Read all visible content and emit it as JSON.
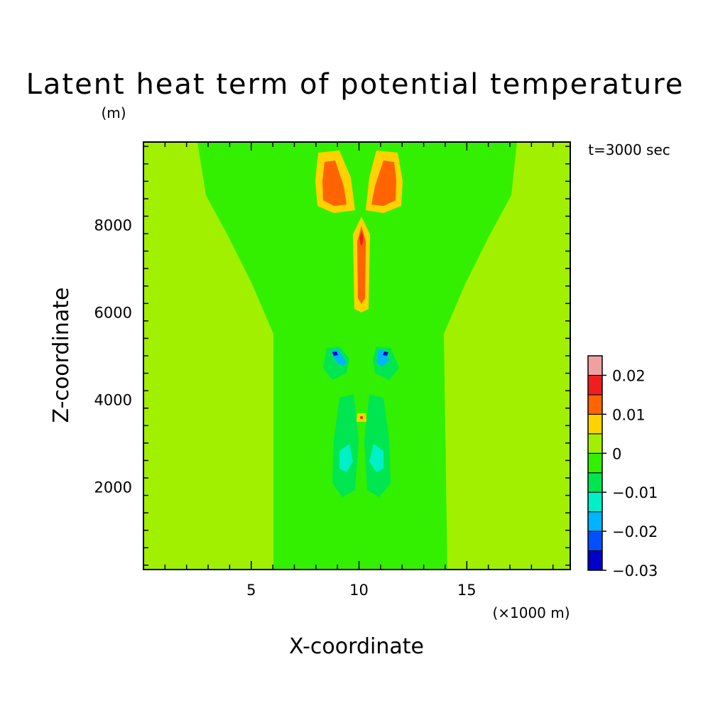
{
  "chart_data": {
    "type": "heatmap",
    "title": "Latent heat term of potential temperature",
    "xlabel": "X-coordinate",
    "ylabel": "Z-coordinate",
    "x_unit": "(×1000 m)",
    "y_unit": "(m)",
    "annotation": "t=3000 sec",
    "xlim": [
      0,
      19.8
    ],
    "ylim": [
      100,
      9900
    ],
    "x_ticks": [
      5,
      10,
      15
    ],
    "y_ticks": [
      2000,
      4000,
      6000,
      8000
    ],
    "colorbar": {
      "levels": [
        -0.03,
        -0.025,
        -0.02,
        -0.015,
        -0.01,
        -0.005,
        0,
        0.005,
        0.01,
        0.015,
        0.02,
        0.025
      ],
      "colors": [
        "#0000c8",
        "#0050ff",
        "#00b4ff",
        "#00f0c8",
        "#00e650",
        "#32f000",
        "#a0f000",
        "#ffd200",
        "#ff6400",
        "#f01e1e",
        "#f0a0a0"
      ],
      "tick_labels": [
        "0.02",
        "0.01",
        "0",
        "−0.01",
        "−0.02",
        "−0.03"
      ],
      "tick_values": [
        0.02,
        0.01,
        0,
        -0.01,
        -0.02,
        -0.03
      ]
    },
    "regions": [
      {
        "label": "background",
        "value": 0.002
      },
      {
        "label": "central column",
        "value": -0.003
      },
      {
        "label": "upper left wing",
        "value": -0.003
      },
      {
        "label": "upper right wing",
        "value": -0.003
      },
      {
        "label": "top left heating lobe",
        "value": 0.012
      },
      {
        "label": "top right heating lobe",
        "value": 0.012
      },
      {
        "label": "central vertical heating core",
        "value": 0.016
      },
      {
        "label": "twin cooling cells near 5000 m",
        "value": -0.025
      },
      {
        "label": "lower cooling cells near 2500 m",
        "value": -0.012
      }
    ]
  }
}
